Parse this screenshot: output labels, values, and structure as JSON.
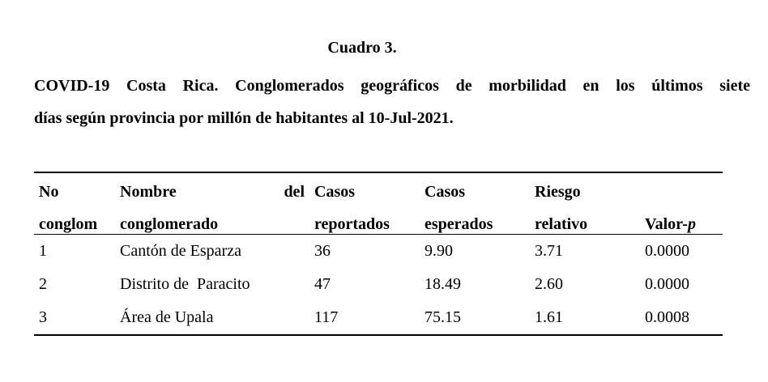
{
  "caption": {
    "label": "Cuadro 3.",
    "title_line1": "COVID-19 Costa Rica. Conglomerados geográficos de morbilidad en los últimos siete",
    "title_line2": "días según provincia por millón de habitantes al 10-Jul-2021."
  },
  "table": {
    "headers": {
      "col1_line1": "No",
      "col1_line2": "conglom",
      "col2_line1_left": "Nombre",
      "col2_line1_right": "del",
      "col2_line2": "conglomerado",
      "col3_line1": "Casos",
      "col3_line2": "reportados",
      "col4_line1": "Casos",
      "col4_line2": "esperados",
      "col5_line1": "Riesgo",
      "col5_line2": "relativo",
      "col6_main": "Valor-",
      "col6_italic": "p"
    },
    "rows": [
      {
        "no": "1",
        "nombre": "Cantón de Esparza",
        "reportados": "36",
        "esperados": "9.90",
        "riesgo": "3.71",
        "valor_p": "0.0000"
      },
      {
        "no": "2",
        "nombre": "Distrito de  Paracito",
        "reportados": "47",
        "esperados": "18.49",
        "riesgo": "2.60",
        "valor_p": "0.0000"
      },
      {
        "no": "3",
        "nombre": "Área de Upala",
        "reportados": "117",
        "esperados": "75.15",
        "riesgo": "1.61",
        "valor_p": "0.0008"
      }
    ]
  }
}
